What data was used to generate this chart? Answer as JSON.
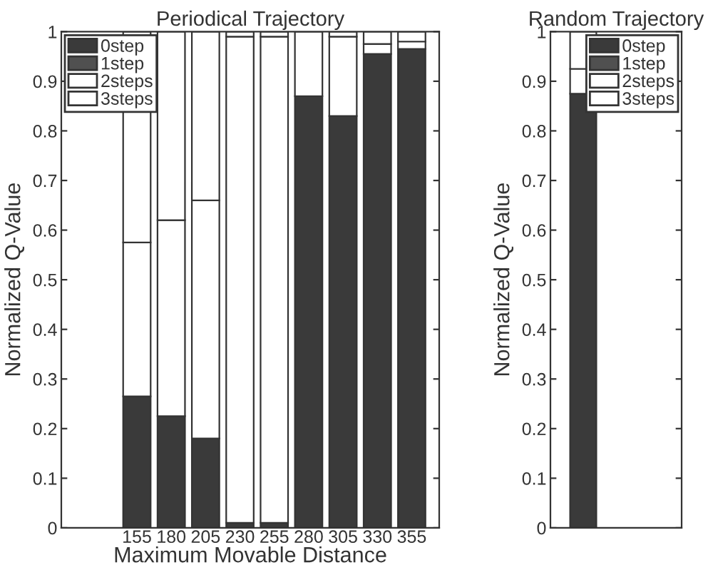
{
  "chart_data": [
    {
      "type": "bar",
      "stacked": true,
      "title": "Periodical Trajectory",
      "xlabel": "Maximum Movable Distance",
      "ylabel": "Normalized Q-Value",
      "x": [
        155,
        180,
        205,
        230,
        255,
        280,
        305,
        330,
        355
      ],
      "xlim": [
        100,
        375
      ],
      "xticks": [
        155,
        180,
        205,
        230,
        255,
        280,
        305,
        330,
        355
      ],
      "ylim": [
        0,
        1
      ],
      "yticks": [
        0,
        0.1,
        0.2,
        0.3,
        0.4,
        0.5,
        0.6,
        0.7,
        0.8,
        0.9,
        1
      ],
      "series": [
        {
          "name": "0step",
          "color": "#3a3a3a",
          "values": [
            0.265,
            0.225,
            0.18,
            0.01,
            0.01,
            0.87,
            0.83,
            0.955,
            0.965
          ]
        },
        {
          "name": "1step",
          "color": "#505050",
          "values": [
            null,
            null,
            null,
            null,
            null,
            null,
            null,
            null,
            null
          ]
        },
        {
          "name": "2steps",
          "color": "#ffffff",
          "values": [
            0.31,
            0.395,
            0.48,
            0.98,
            0.98,
            0.13,
            0.16,
            0.02,
            0.015
          ]
        },
        {
          "name": "3steps",
          "color": "#ffffff",
          "values": [
            0.425,
            0.38,
            0.34,
            0.01,
            0.01,
            null,
            0.01,
            0.025,
            0.02
          ]
        }
      ],
      "grid": false,
      "legend": "top left"
    },
    {
      "type": "bar",
      "stacked": true,
      "title": "Random Trajectory",
      "ylabel": "Normalized Q-Value",
      "categories": [
        null,
        null
      ],
      "ylim": [
        0,
        1
      ],
      "yticks": [
        0,
        0.1,
        0.2,
        0.3,
        0.4,
        0.5,
        0.6,
        0.7,
        0.8,
        0.9,
        1
      ],
      "series": [
        {
          "name": "0step",
          "color": "#3a3a3a",
          "values": [
            0.875,
            null
          ]
        },
        {
          "name": "1step",
          "color": "#505050",
          "values": [
            null,
            null
          ]
        },
        {
          "name": "2steps",
          "color": "#ffffff",
          "values": [
            0.05,
            null
          ]
        },
        {
          "name": "3steps",
          "color": "#ffffff",
          "values": [
            0.075,
            null
          ]
        }
      ],
      "grid": false,
      "legend": "top right"
    }
  ]
}
